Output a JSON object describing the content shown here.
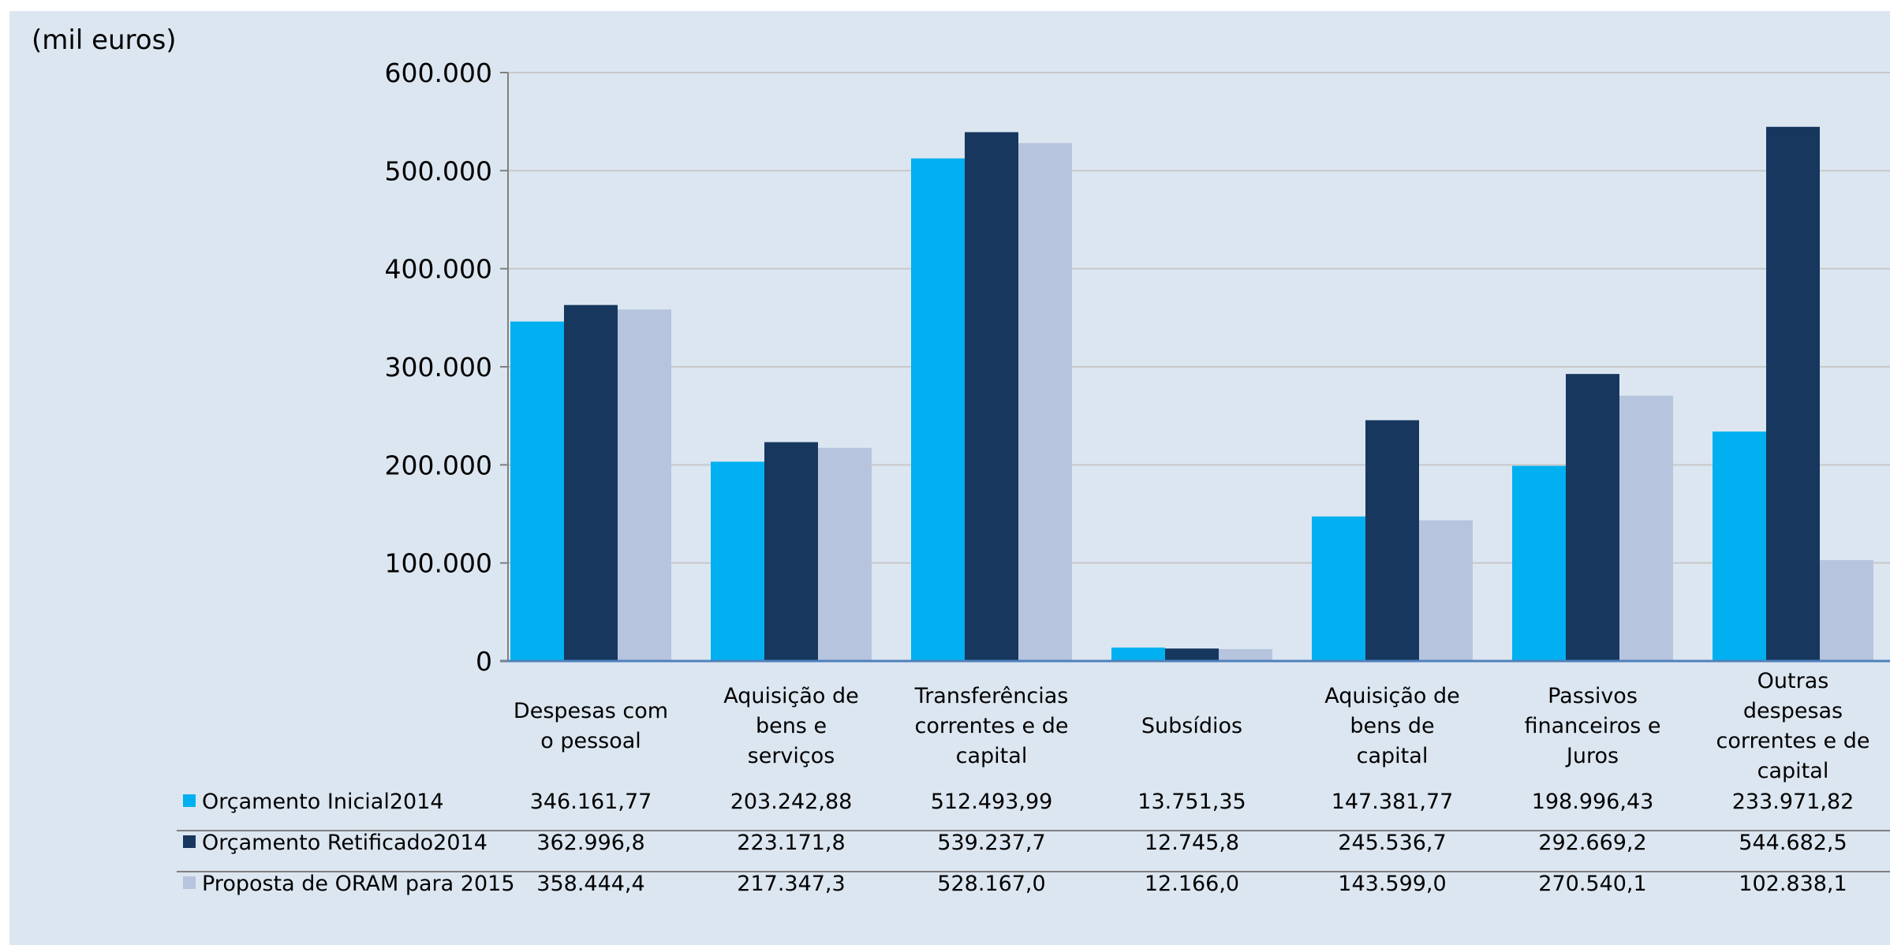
{
  "chart_data": {
    "type": "bar",
    "unit_label": "(mil euros)",
    "ylim": [
      0,
      600000
    ],
    "yticks": [
      0,
      100000,
      200000,
      300000,
      400000,
      500000,
      600000
    ],
    "ytick_labels": [
      "0",
      "100.000",
      "200.000",
      "300.000",
      "400.000",
      "500.000",
      "600.000"
    ],
    "grid": true,
    "legend_placement": "data-table-left",
    "categories": [
      [
        "Despesas com",
        "o pessoal"
      ],
      [
        "Aquisição de",
        "bens e",
        "serviços"
      ],
      [
        "Transferências",
        "correntes e de",
        "capital"
      ],
      [
        "Subsídios"
      ],
      [
        "Aquisição de",
        "bens de",
        "capital"
      ],
      [
        "Passivos",
        "financeiros e",
        "Juros"
      ],
      [
        "Outras",
        "despesas",
        "correntes e de",
        "capital"
      ]
    ],
    "series": [
      {
        "name": "Orçamento Inicial2014",
        "color": "#00b0f0",
        "values": [
          346161.77,
          203242.88,
          512493.99,
          13751.35,
          147381.77,
          198996.43,
          233971.82
        ],
        "labels": [
          "346.161,77",
          "203.242,88",
          "512.493,99",
          "13.751,35",
          "147.381,77",
          "198.996,43",
          "233.971,82"
        ]
      },
      {
        "name": "Orçamento Retificado2014",
        "color": "#17375e",
        "values": [
          362996.8,
          223171.8,
          539237.7,
          12745.8,
          245536.7,
          292669.2,
          544682.5
        ],
        "labels": [
          "362.996,8",
          "223.171,8",
          "539.237,7",
          "12.745,8",
          "245.536,7",
          "292.669,2",
          "544.682,5"
        ]
      },
      {
        "name": "Proposta de ORAM para 2015",
        "color": "#b7c4de",
        "values": [
          358444.4,
          217347.3,
          528167.0,
          12166.0,
          143599.0,
          270540.1,
          102838.1
        ],
        "labels": [
          "358.444,4",
          "217.347,3",
          "528.167,0",
          "12.166,0",
          "143.599,0",
          "270.540,1",
          "102.838,1"
        ]
      }
    ]
  }
}
